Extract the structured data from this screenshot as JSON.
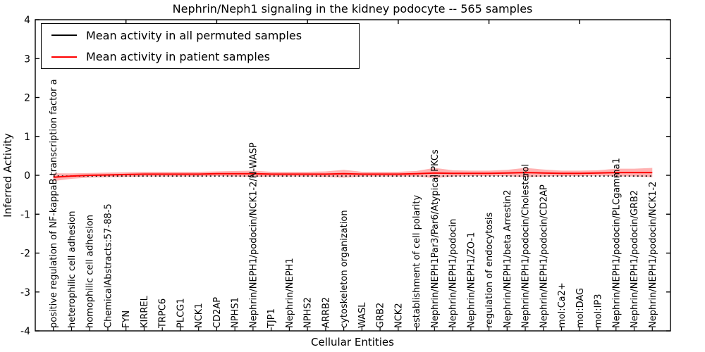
{
  "title": "Nephrin/Neph1 signaling in the kidney podocyte -- 565 samples",
  "legend": {
    "entries": [
      {
        "label": "Mean activity in all permuted samples",
        "color": "#000000"
      },
      {
        "label": "Mean activity in patient samples",
        "color": "#ff0000"
      }
    ]
  },
  "colors": {
    "band": "rgba(255,0,0,0.30)",
    "axis": "#000000",
    "background": "#ffffff"
  },
  "chart_data": {
    "type": "line",
    "title": "Nephrin/Neph1 signaling in the kidney podocyte -- 565 samples",
    "xlabel": "Cellular Entities",
    "ylabel": "Inferred Activity",
    "ylim": [
      -4,
      4
    ],
    "xlim": [
      0,
      35
    ],
    "yticks": [
      4,
      3,
      2,
      1,
      0,
      -1,
      -2,
      -3,
      -4
    ],
    "xticks_major": [
      5,
      10,
      15,
      20,
      25,
      30
    ],
    "grid": false,
    "legend_position": "upper left",
    "categories": [
      "positive regulation of NF-kappaB transcription factor a",
      "heterophilic cell adhesion",
      "homophilic cell adhesion",
      "ChemicalAbstracts:57-88-5",
      "FYN",
      "KIRREL",
      "TRPC6",
      "PLCG1",
      "NCK1",
      "CD2AP",
      "NPHS1",
      "Nephrin/NEPH1/podocin/NCK1-2/N-WASP",
      "TJP1",
      "Nephrin/NEPH1",
      "NPHS2",
      "ARRB2",
      "cytoskeleton organization",
      "WASL",
      "GRB2",
      "NCK2",
      "establishment of cell polarity",
      "Nephrin/NEPH1Par3/Par6/Atypical PKCs",
      "Nephrin/NEPH1/podocin",
      "Nephrin/NEPH1/ZO-1",
      "regulation of endocytosis",
      "Nephrin/NEPH1/beta Arrestin2",
      "Nephrin/NEPH1/podocin/Cholesterol",
      "Nephrin/NEPH1/podocin/CD2AP",
      "mol:Ca2+",
      "mol:DAG",
      "mol:IP3",
      "Nephrin/NEPH1/podocin/PLCgamma1",
      "Nephrin/NEPH1/podocin/GRB2",
      "Nephrin/NEPH1/podocin/NCK1-2"
    ],
    "series": [
      {
        "name": "Mean activity in all permuted samples",
        "color": "#000000",
        "style": "dotted",
        "values": [
          -0.02,
          -0.02,
          -0.02,
          -0.02,
          -0.02,
          -0.02,
          -0.02,
          -0.02,
          -0.02,
          -0.02,
          -0.02,
          -0.02,
          -0.02,
          -0.02,
          -0.02,
          -0.02,
          -0.02,
          -0.02,
          -0.02,
          -0.02,
          -0.02,
          -0.02,
          -0.02,
          -0.02,
          -0.02,
          -0.02,
          -0.02,
          -0.02,
          -0.02,
          -0.02,
          -0.02,
          -0.02,
          -0.02,
          -0.02
        ]
      },
      {
        "name": "Mean activity in patient samples",
        "color": "#ff0000",
        "style": "solid",
        "values": [
          -0.05,
          -0.02,
          0.0,
          0.01,
          0.02,
          0.03,
          0.03,
          0.03,
          0.03,
          0.04,
          0.04,
          0.04,
          0.03,
          0.03,
          0.03,
          0.03,
          0.04,
          0.03,
          0.03,
          0.03,
          0.04,
          0.06,
          0.05,
          0.05,
          0.05,
          0.06,
          0.07,
          0.06,
          0.05,
          0.05,
          0.06,
          0.07,
          0.07,
          0.07
        ],
        "band_upper": [
          0.05,
          0.05,
          0.06,
          0.07,
          0.08,
          0.09,
          0.09,
          0.09,
          0.09,
          0.1,
          0.11,
          0.12,
          0.09,
          0.09,
          0.09,
          0.1,
          0.14,
          0.09,
          0.09,
          0.09,
          0.11,
          0.19,
          0.13,
          0.12,
          0.12,
          0.14,
          0.19,
          0.15,
          0.12,
          0.12,
          0.13,
          0.17,
          0.17,
          0.19
        ],
        "band_lower": [
          -0.15,
          -0.09,
          -0.06,
          -0.05,
          -0.04,
          -0.03,
          -0.03,
          -0.03,
          -0.03,
          -0.02,
          -0.03,
          -0.04,
          -0.03,
          -0.03,
          -0.03,
          -0.04,
          -0.06,
          -0.03,
          -0.03,
          -0.03,
          -0.03,
          -0.07,
          -0.03,
          -0.02,
          -0.02,
          -0.02,
          -0.05,
          -0.03,
          -0.02,
          -0.02,
          -0.01,
          -0.03,
          -0.03,
          -0.05
        ]
      }
    ]
  }
}
